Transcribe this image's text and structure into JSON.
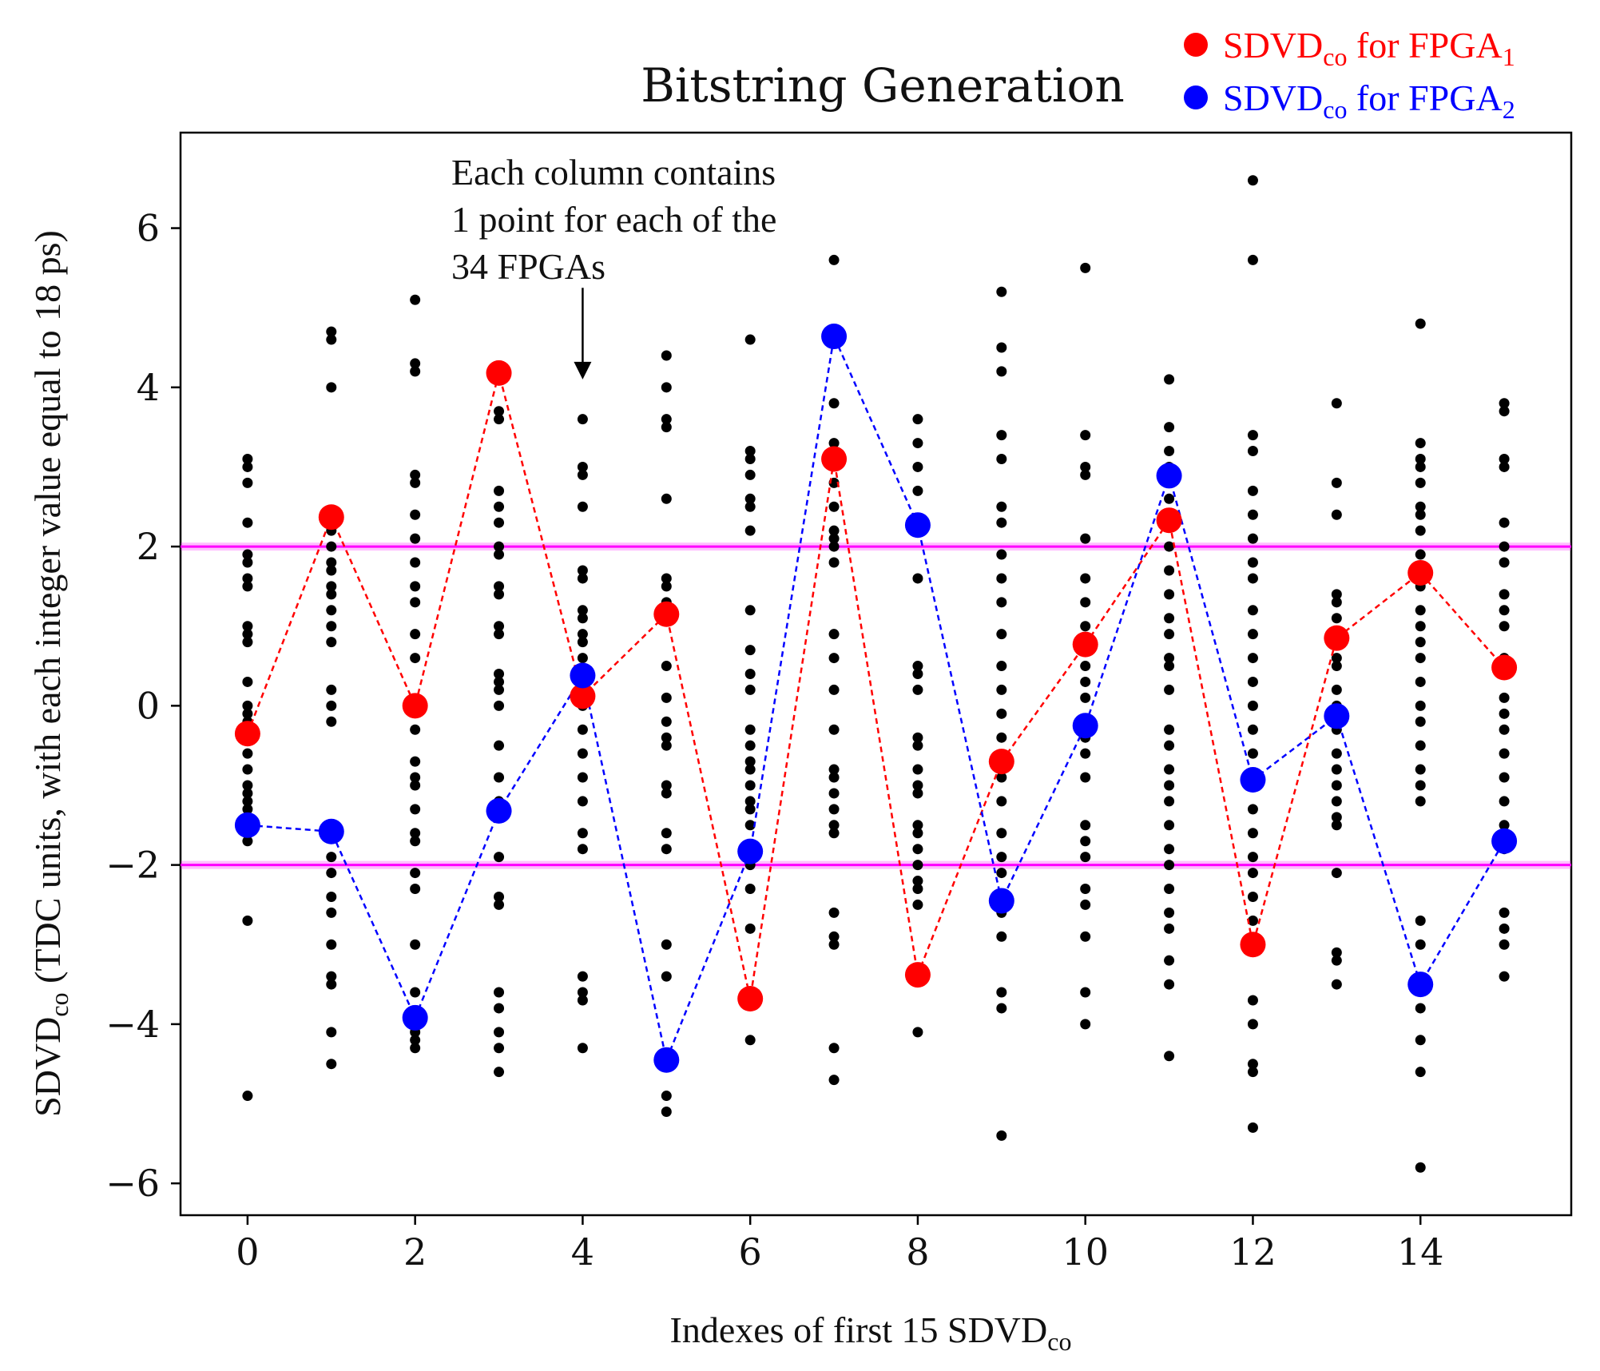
{
  "chart_data": {
    "type": "scatter",
    "title": "Bitstring Generation",
    "xlabel": {
      "text": "Indexes of first 15 SDVD",
      "sub": "co"
    },
    "ylabel": {
      "main": "SDVD",
      "sub": "co",
      "rest": " (TDC units, with each integer value equal to 18 ps)"
    },
    "xlim": [
      -0.8,
      15.8
    ],
    "ylim": [
      -6.4,
      7.2
    ],
    "xticks": [
      0,
      2,
      4,
      6,
      8,
      10,
      12,
      14
    ],
    "xtick_labels": [
      "0",
      "2",
      "4",
      "6",
      "8",
      "10",
      "12",
      "14"
    ],
    "yticks": [
      -6,
      -4,
      -2,
      0,
      2,
      4,
      6
    ],
    "ytick_labels": [
      "−6",
      "−4",
      "−2",
      "0",
      "2",
      "4",
      "6"
    ],
    "thresholds": [
      2,
      -2
    ],
    "threshold_color": "#ff00ff",
    "annotation": {
      "lines": [
        "Each column contains",
        "1 point for each of the",
        "34 FPGAs"
      ],
      "arrow_x": 4,
      "arrow_from_y": 5.25,
      "arrow_to_y": 4.1
    },
    "background_points": [
      {
        "x": 0,
        "y": [
          3.1,
          3.0,
          2.8,
          2.3,
          1.9,
          1.8,
          1.6,
          1.5,
          1.0,
          0.9,
          0.8,
          0.3,
          0.0,
          -0.1,
          -0.2,
          -0.4,
          -0.6,
          -0.8,
          -1.0,
          -1.1,
          -1.2,
          -1.3,
          -1.5,
          -1.7,
          -2.7,
          -4.9
        ]
      },
      {
        "x": 1,
        "y": [
          4.7,
          4.6,
          4.0,
          2.4,
          2.2,
          2.0,
          1.8,
          1.7,
          1.5,
          1.4,
          1.2,
          1.0,
          0.8,
          0.2,
          0.0,
          -0.2,
          -1.5,
          -1.9,
          -2.1,
          -2.4,
          -2.6,
          -3.0,
          -3.4,
          -3.5,
          -4.1,
          -4.5
        ]
      },
      {
        "x": 2,
        "y": [
          5.1,
          4.3,
          4.2,
          2.9,
          2.8,
          2.4,
          2.1,
          1.8,
          1.5,
          1.3,
          0.9,
          0.6,
          -0.3,
          -0.7,
          -0.9,
          -1.0,
          -1.3,
          -1.6,
          -1.7,
          -2.1,
          -2.3,
          -3.0,
          -3.6,
          -4.1,
          -4.2,
          -4.3
        ]
      },
      {
        "x": 3,
        "y": [
          4.2,
          3.7,
          3.6,
          2.7,
          2.5,
          2.3,
          2.0,
          1.9,
          1.5,
          1.4,
          1.0,
          0.9,
          0.4,
          0.3,
          0.2,
          0.0,
          -0.5,
          -0.9,
          -1.2,
          -1.4,
          -1.9,
          -2.4,
          -2.5,
          -3.6,
          -3.8,
          -4.1,
          -4.3,
          -4.6
        ]
      },
      {
        "x": 4,
        "y": [
          3.6,
          3.0,
          2.9,
          2.5,
          1.7,
          1.6,
          1.2,
          1.1,
          0.9,
          0.8,
          0.6,
          0.4,
          0.2,
          0.0,
          -0.3,
          -0.6,
          -0.9,
          -1.2,
          -1.6,
          -1.8,
          -3.4,
          -3.6,
          -3.7,
          -4.3
        ]
      },
      {
        "x": 5,
        "y": [
          4.4,
          4.0,
          3.6,
          3.5,
          2.6,
          1.6,
          1.5,
          1.3,
          1.1,
          0.5,
          0.1,
          -0.2,
          -0.4,
          -0.5,
          -1.0,
          -1.1,
          -1.6,
          -1.8,
          -3.0,
          -3.4,
          -4.9,
          -5.1
        ]
      },
      {
        "x": 6,
        "y": [
          4.6,
          3.2,
          3.1,
          2.9,
          2.6,
          2.5,
          2.2,
          1.2,
          0.7,
          0.4,
          0.2,
          -0.3,
          -0.5,
          -0.7,
          -0.8,
          -1.0,
          -1.2,
          -1.3,
          -1.5,
          -2.0,
          -2.3,
          -2.8,
          -4.2
        ]
      },
      {
        "x": 7,
        "y": [
          5.6,
          3.8,
          3.3,
          2.8,
          2.5,
          2.2,
          2.1,
          2.0,
          1.8,
          0.9,
          0.6,
          0.2,
          -0.3,
          -0.8,
          -0.9,
          -1.1,
          -1.3,
          -1.5,
          -1.6,
          -2.6,
          -2.9,
          -3.0,
          -4.3,
          -4.7
        ]
      },
      {
        "x": 8,
        "y": [
          3.6,
          3.3,
          3.0,
          2.7,
          2.3,
          1.6,
          0.5,
          0.4,
          0.2,
          -0.4,
          -0.5,
          -0.8,
          -1.0,
          -1.1,
          -1.5,
          -1.6,
          -1.8,
          -2.0,
          -2.2,
          -2.3,
          -2.5,
          -4.1
        ]
      },
      {
        "x": 9,
        "y": [
          5.2,
          4.5,
          4.2,
          3.4,
          3.1,
          2.5,
          2.3,
          1.9,
          1.6,
          1.3,
          0.9,
          0.5,
          0.2,
          -0.1,
          -0.4,
          -0.9,
          -1.2,
          -1.6,
          -1.9,
          -2.1,
          -2.4,
          -2.6,
          -2.9,
          -3.6,
          -3.8,
          -5.4
        ]
      },
      {
        "x": 10,
        "y": [
          5.5,
          3.4,
          3.0,
          2.9,
          2.1,
          1.6,
          1.3,
          1.0,
          0.7,
          0.5,
          0.3,
          0.1,
          -0.2,
          -0.4,
          -0.6,
          -0.9,
          -1.5,
          -1.7,
          -1.9,
          -2.3,
          -2.5,
          -2.9,
          -3.6,
          -4.0
        ]
      },
      {
        "x": 11,
        "y": [
          4.1,
          3.5,
          3.2,
          3.0,
          2.6,
          2.3,
          2.0,
          1.7,
          1.4,
          1.1,
          0.9,
          0.6,
          0.5,
          0.2,
          -0.3,
          -0.5,
          -0.8,
          -1.0,
          -1.2,
          -1.5,
          -1.8,
          -2.0,
          -2.3,
          -2.6,
          -2.8,
          -3.2,
          -3.5,
          -4.4
        ]
      },
      {
        "x": 12,
        "y": [
          6.6,
          5.6,
          3.4,
          3.2,
          2.7,
          2.4,
          2.1,
          1.8,
          1.6,
          1.2,
          0.9,
          0.6,
          0.3,
          0.0,
          -0.3,
          -0.6,
          -1.0,
          -1.3,
          -1.6,
          -1.9,
          -2.1,
          -2.4,
          -2.7,
          -3.7,
          -4.0,
          -4.5,
          -4.6,
          -5.3
        ]
      },
      {
        "x": 13,
        "y": [
          3.8,
          2.8,
          2.4,
          1.4,
          1.3,
          1.1,
          0.9,
          0.6,
          0.5,
          0.2,
          0.0,
          -0.3,
          -0.6,
          -0.8,
          -1.0,
          -1.2,
          -1.4,
          -1.5,
          -2.1,
          -3.1,
          -3.2,
          -3.5
        ]
      },
      {
        "x": 14,
        "y": [
          4.8,
          3.3,
          3.1,
          3.0,
          2.8,
          2.5,
          2.4,
          2.2,
          1.9,
          1.5,
          1.2,
          1.0,
          0.8,
          0.6,
          0.3,
          0.0,
          -0.2,
          -0.5,
          -0.8,
          -1.0,
          -1.2,
          -2.7,
          -3.0,
          -3.8,
          -4.2,
          -4.6,
          -5.8
        ]
      },
      {
        "x": 15,
        "y": [
          3.8,
          3.7,
          3.1,
          3.0,
          2.3,
          2.0,
          1.8,
          1.4,
          1.2,
          1.0,
          0.6,
          0.4,
          0.1,
          -0.1,
          -0.3,
          -0.6,
          -0.9,
          -1.2,
          -1.5,
          -1.8,
          -2.6,
          -2.8,
          -3.0,
          -3.4
        ]
      }
    ],
    "series": [
      {
        "name": "SDVD_co for FPGA_1",
        "label_parts": [
          "SDVD",
          "co",
          " for FPGA",
          "1"
        ],
        "color": "#ff0000",
        "x": [
          0,
          1,
          2,
          3,
          4,
          5,
          6,
          7,
          8,
          9,
          10,
          11,
          12,
          13,
          14,
          15
        ],
        "y": [
          -0.35,
          2.37,
          0.0,
          4.18,
          0.12,
          1.15,
          -3.68,
          3.1,
          -3.38,
          -0.7,
          0.77,
          2.33,
          -3.0,
          0.85,
          1.67,
          0.48
        ]
      },
      {
        "name": "SDVD_co for FPGA_2",
        "label_parts": [
          "SDVD",
          "co",
          " for FPGA",
          "2"
        ],
        "color": "#0000ff",
        "x": [
          0,
          1,
          2,
          3,
          4,
          5,
          6,
          7,
          8,
          9,
          10,
          11,
          12,
          13,
          14,
          15
        ],
        "y": [
          -1.5,
          -1.58,
          -3.92,
          -1.32,
          0.38,
          -4.45,
          -1.83,
          4.64,
          2.27,
          -2.45,
          -0.25,
          2.89,
          -0.93,
          -0.13,
          -3.5,
          -1.7
        ]
      }
    ]
  }
}
